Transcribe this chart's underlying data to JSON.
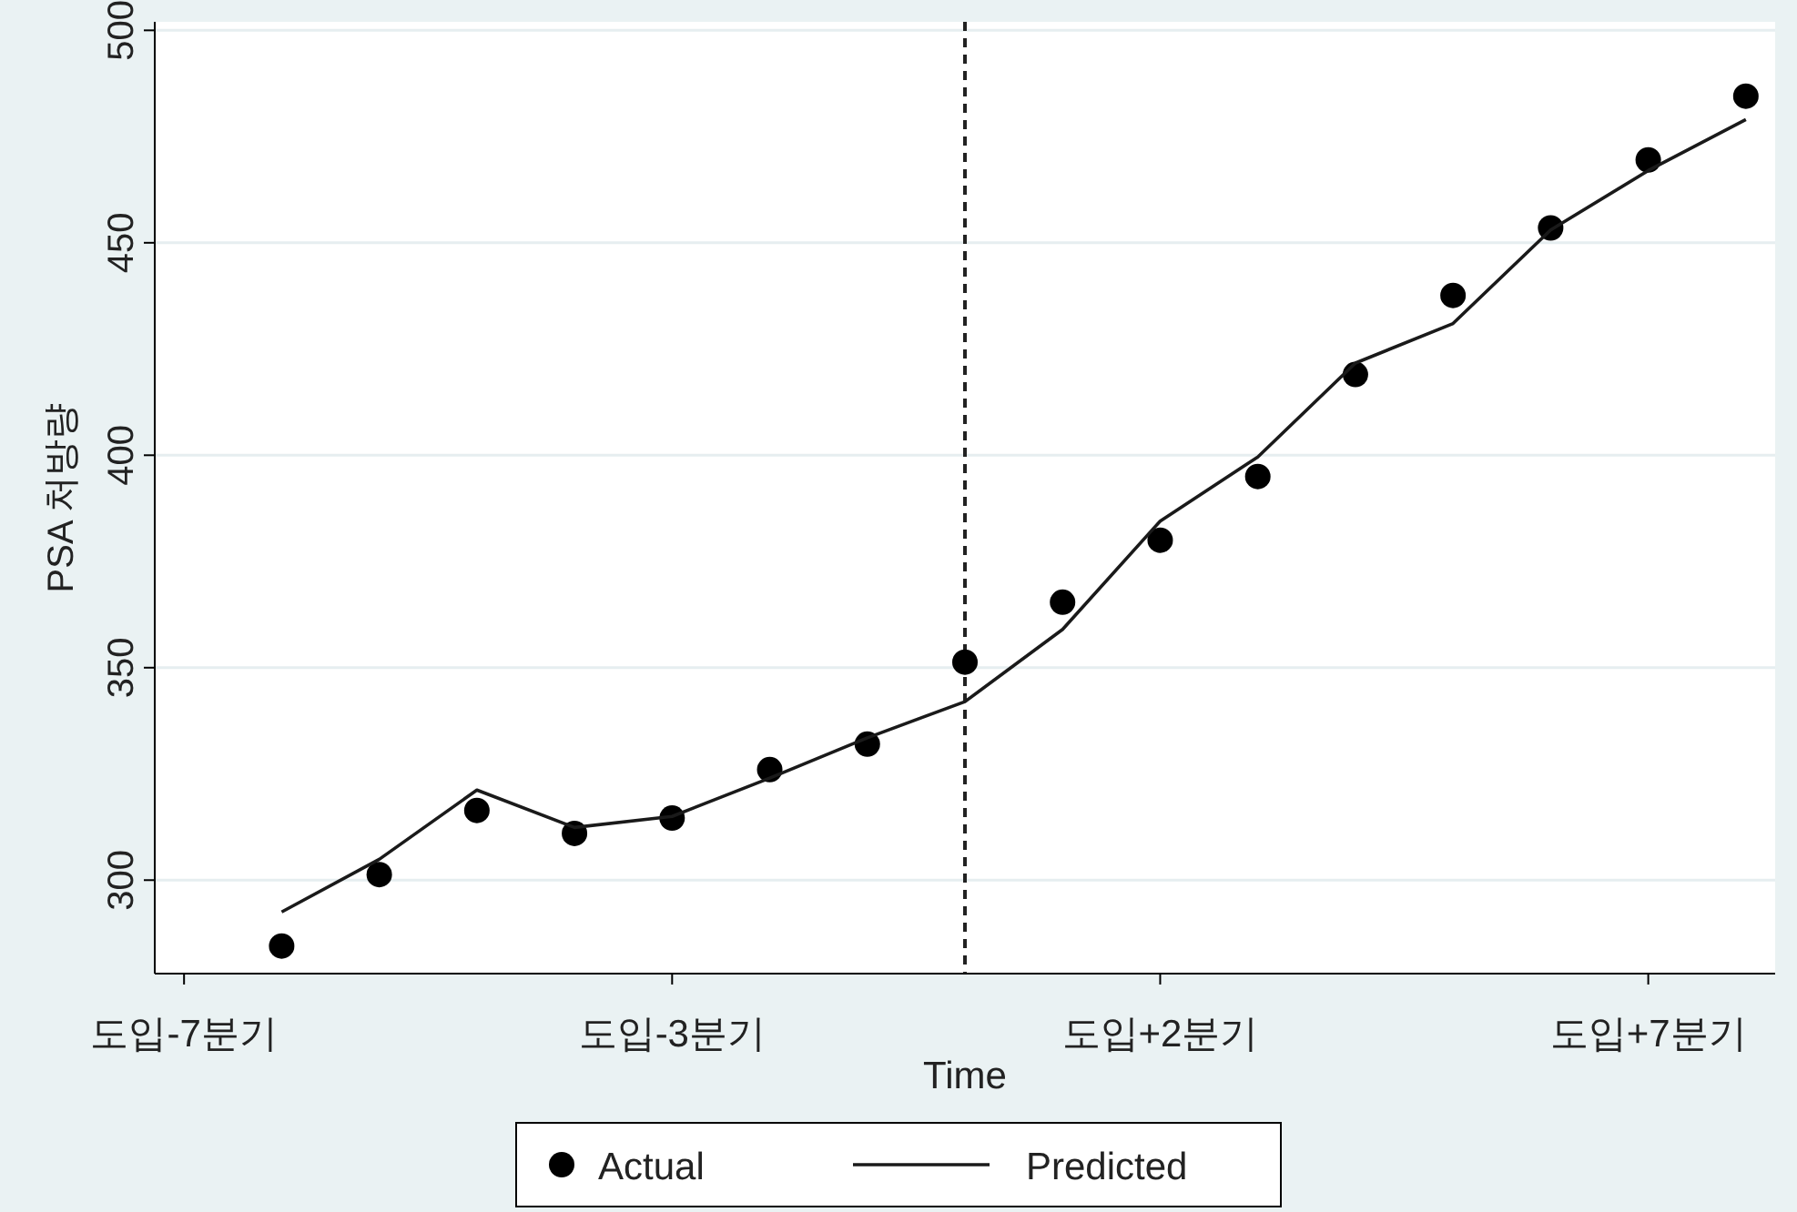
{
  "chart_data": {
    "type": "scatter",
    "xlabel": "Time",
    "ylabel": "PSA 처방량",
    "categories": [
      "도입-7분기",
      null,
      null,
      null,
      null,
      "도입-3분기",
      null,
      null,
      null,
      null,
      "도입+2분기",
      null,
      null,
      null,
      null,
      "도입+7분기",
      null
    ],
    "series": [
      {
        "name": "Actual",
        "color": "#000000",
        "marker": "circle",
        "values": [
          null,
          284.5,
          301.3,
          316.4,
          311,
          314.6,
          326,
          332,
          351.3,
          365.4,
          380,
          395,
          419,
          437.6,
          453.5,
          469.5,
          484.5
        ]
      },
      {
        "name": "Predicted",
        "type": "line",
        "color": "#1a1a1a",
        "values": [
          null,
          292.5,
          304.9,
          321.2,
          312.4,
          315,
          324,
          333.5,
          342,
          359,
          384.5,
          399.6,
          421.7,
          431,
          453,
          467,
          479
        ]
      }
    ],
    "ylim": [
      278,
      502
    ],
    "yticks": [
      300,
      350,
      400,
      450,
      500
    ],
    "grid": "y",
    "legend": "bottom"
  }
}
